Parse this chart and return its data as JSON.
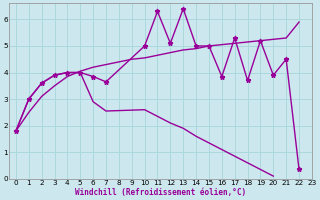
{
  "background_color": "#cce8ee",
  "line_color": "#990099",
  "grid_color": "#aad8dd",
  "xlim": [
    -0.5,
    23
  ],
  "ylim": [
    0,
    6.6
  ],
  "xticks": [
    0,
    1,
    2,
    3,
    4,
    5,
    6,
    7,
    8,
    9,
    10,
    11,
    12,
    13,
    14,
    15,
    16,
    17,
    18,
    19,
    20,
    21,
    22,
    23
  ],
  "yticks": [
    0,
    1,
    2,
    3,
    4,
    5,
    6
  ],
  "xlabel": "Windchill (Refroidissement éolien,°C)",
  "series": [
    {
      "x": [
        0,
        1,
        2,
        3,
        4,
        5,
        6,
        7,
        10,
        11,
        12,
        13,
        14,
        15,
        16,
        17,
        18,
        19,
        20,
        21,
        22
      ],
      "y": [
        1.8,
        3.0,
        3.6,
        3.9,
        4.0,
        4.0,
        3.85,
        3.65,
        5.0,
        6.3,
        5.1,
        6.4,
        5.0,
        5.0,
        3.85,
        5.3,
        3.7,
        5.2,
        3.9,
        4.5,
        0.35
      ],
      "marker": true
    },
    {
      "x": [
        0,
        1,
        2,
        3,
        4,
        5,
        6,
        7,
        10,
        11,
        12,
        13,
        14,
        15,
        16,
        17,
        18,
        19,
        20,
        21,
        22
      ],
      "y": [
        1.8,
        3.0,
        3.6,
        3.9,
        4.0,
        4.0,
        2.9,
        2.55,
        2.6,
        2.35,
        2.1,
        1.9,
        1.6,
        1.35,
        1.1,
        0.85,
        0.6,
        0.35,
        0.1,
        null,
        null
      ],
      "marker": false
    },
    {
      "x": [
        0,
        1,
        2,
        3,
        4,
        5,
        6,
        7,
        8,
        9,
        10,
        11,
        12,
        13,
        14,
        15,
        16,
        17,
        18,
        19,
        20,
        21,
        22
      ],
      "y": [
        1.8,
        2.5,
        3.1,
        3.5,
        3.85,
        4.05,
        4.2,
        4.3,
        4.4,
        4.5,
        4.55,
        4.65,
        4.75,
        4.85,
        4.9,
        5.0,
        5.05,
        5.1,
        5.15,
        5.2,
        5.25,
        5.3,
        5.9
      ],
      "marker": false
    }
  ],
  "markersize": 3.5,
  "linewidth": 1.0
}
